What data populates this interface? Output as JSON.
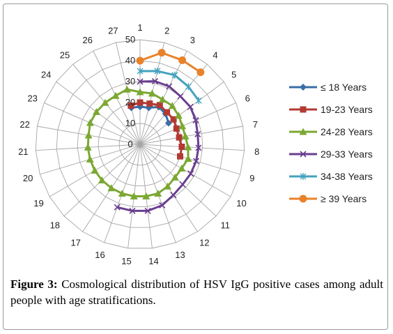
{
  "caption": {
    "label": "Figure 3:",
    "text": "Cosmological distribution of HSV IgG positive cases among adult people with age stratifications."
  },
  "chart_data": {
    "type": "radar",
    "categories": [
      "1",
      "2",
      "3",
      "4",
      "5",
      "6",
      "7",
      "8",
      "9",
      "10",
      "11",
      "12",
      "13",
      "14",
      "15",
      "16",
      "17",
      "18",
      "19",
      "20",
      "21",
      "22",
      "23",
      "24",
      "25",
      "26",
      "27"
    ],
    "radial_ticks": [
      0,
      10,
      20,
      30,
      40,
      50
    ],
    "rlim": [
      0,
      50
    ],
    "legend_position": "right",
    "series": [
      {
        "name": "≤ 18 Years",
        "color": "#3a6ea5",
        "marker": "diamond",
        "values": [
          18,
          18,
          20,
          19,
          17,
          null,
          null,
          null,
          null,
          null,
          null,
          null,
          null,
          null,
          null,
          null,
          null,
          null,
          null,
          null,
          null,
          null,
          null,
          null,
          null,
          null,
          18
        ]
      },
      {
        "name": "19-23 Years",
        "color": "#b23a32",
        "marker": "square",
        "values": [
          20,
          20,
          21,
          20,
          20,
          19,
          19,
          20,
          20,
          null,
          null,
          null,
          null,
          null,
          null,
          null,
          null,
          null,
          null,
          null,
          null,
          null,
          null,
          null,
          null,
          null,
          19
        ]
      },
      {
        "name": "24-28 Years",
        "color": "#7ba832",
        "marker": "triangle",
        "values": [
          25,
          25,
          24,
          24,
          23,
          22,
          22,
          23,
          24,
          23,
          23,
          24,
          25,
          25,
          25,
          25,
          25,
          25,
          25,
          25,
          25,
          25,
          26,
          26,
          26,
          26,
          27
        ]
      },
      {
        "name": "29-33 Years",
        "color": "#6a3e8f",
        "marker": "x",
        "values": [
          30,
          31,
          31,
          30,
          30,
          29,
          28,
          28,
          28,
          28,
          28,
          29,
          31,
          32,
          32,
          32,
          null,
          null,
          null,
          null,
          null,
          null,
          null,
          null,
          null,
          null,
          null
        ]
      },
      {
        "name": "34-38 Years",
        "color": "#45a2bf",
        "marker": "star",
        "values": [
          35,
          36,
          37,
          36,
          35,
          null,
          null,
          null,
          null,
          null,
          null,
          null,
          null,
          null,
          null,
          null,
          null,
          null,
          null,
          null,
          null,
          null,
          null,
          null,
          null,
          null,
          null
        ]
      },
      {
        "name": "≥ 39 Years",
        "color": "#e8822b",
        "marker": "circle",
        "values": [
          40,
          45,
          45,
          45,
          null,
          null,
          null,
          null,
          null,
          null,
          null,
          null,
          null,
          null,
          null,
          null,
          null,
          null,
          null,
          null,
          null,
          null,
          null,
          null,
          null,
          null,
          null
        ]
      }
    ]
  }
}
